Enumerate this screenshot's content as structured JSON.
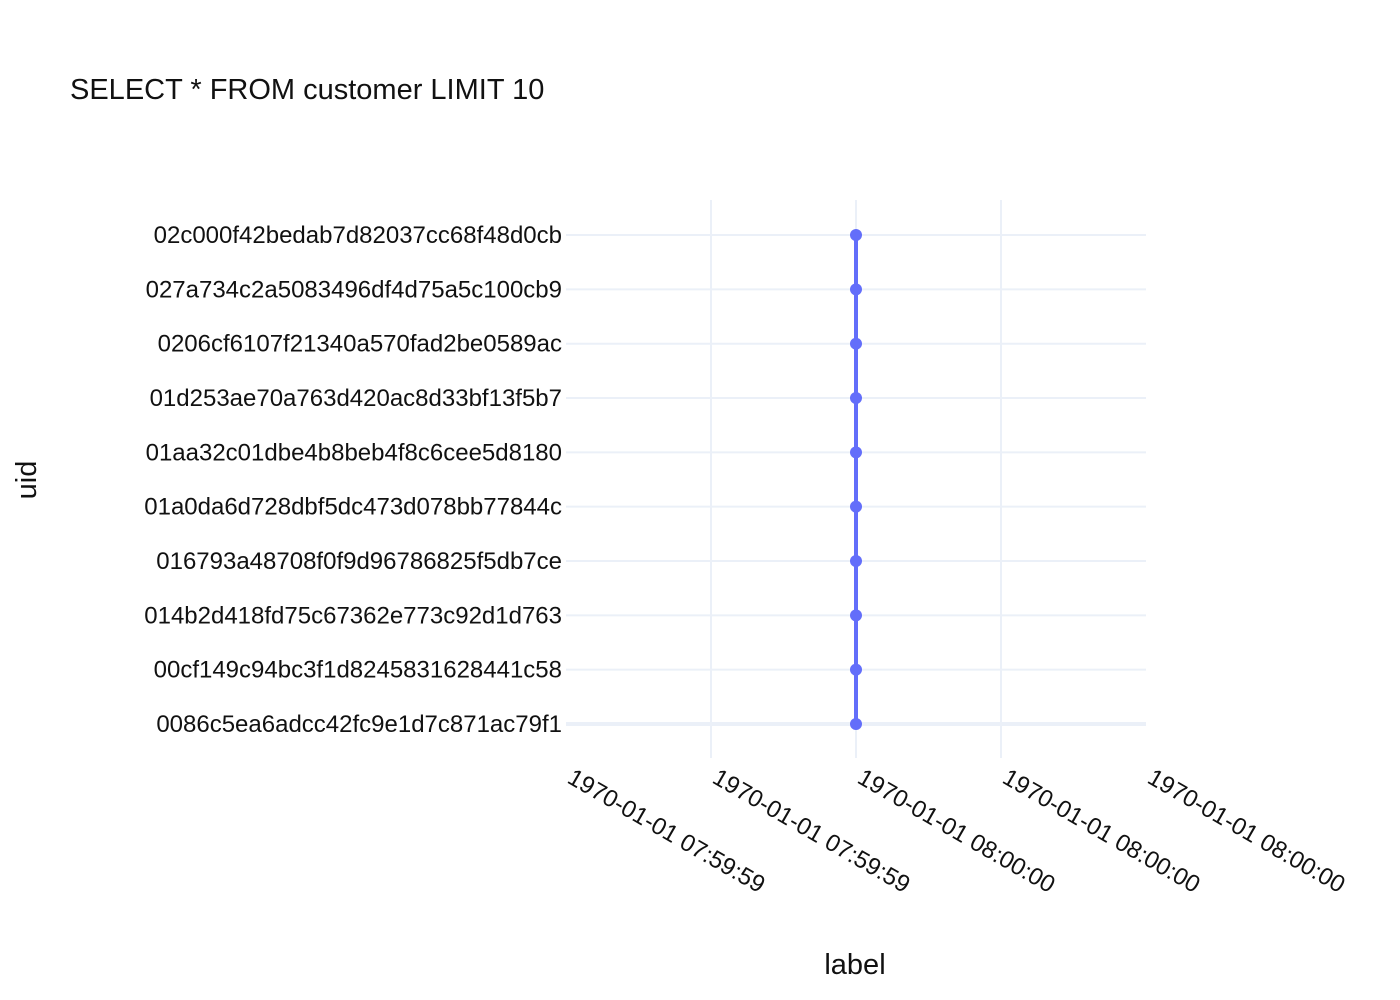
{
  "chart_data": {
    "type": "line",
    "title": "SELECT * FROM customer LIMIT 10",
    "xlabel": "label",
    "ylabel": "uid",
    "x_ticks": [
      "1970-01-01 07:59:59",
      "1970-01-01 07:59:59",
      "1970-01-01 08:00:00",
      "1970-01-01 08:00:00",
      "1970-01-01 08:00:00"
    ],
    "xlim": [
      -2,
      2
    ],
    "categories": [
      "0086c5ea6adcc42fc9e1d7c871ac79f1",
      "00cf149c94bc3f1d8245831628441c58",
      "014b2d418fd75c67362e773c92d1d763",
      "016793a48708f0f9d96786825f5db7ce",
      "01a0da6d728dbf5dc473d078bb77844c",
      "01aa32c01dbe4b8beb4f8c6cee5d8180",
      "01d253ae70a763d420ac8d33bf13f5b7",
      "0206cf6107f21340a570fad2be0589ac",
      "027a734c2a5083496df4d75a5c100cb9",
      "02c000f42bedab7d82037cc68f48d0cb"
    ],
    "series": [
      {
        "x": [
          0,
          0,
          0,
          0,
          0,
          0,
          0,
          0,
          0,
          0
        ],
        "color": "#636efa"
      }
    ],
    "grid": true,
    "grid_color": "#ebf0f8",
    "mode": "lines+markers"
  }
}
